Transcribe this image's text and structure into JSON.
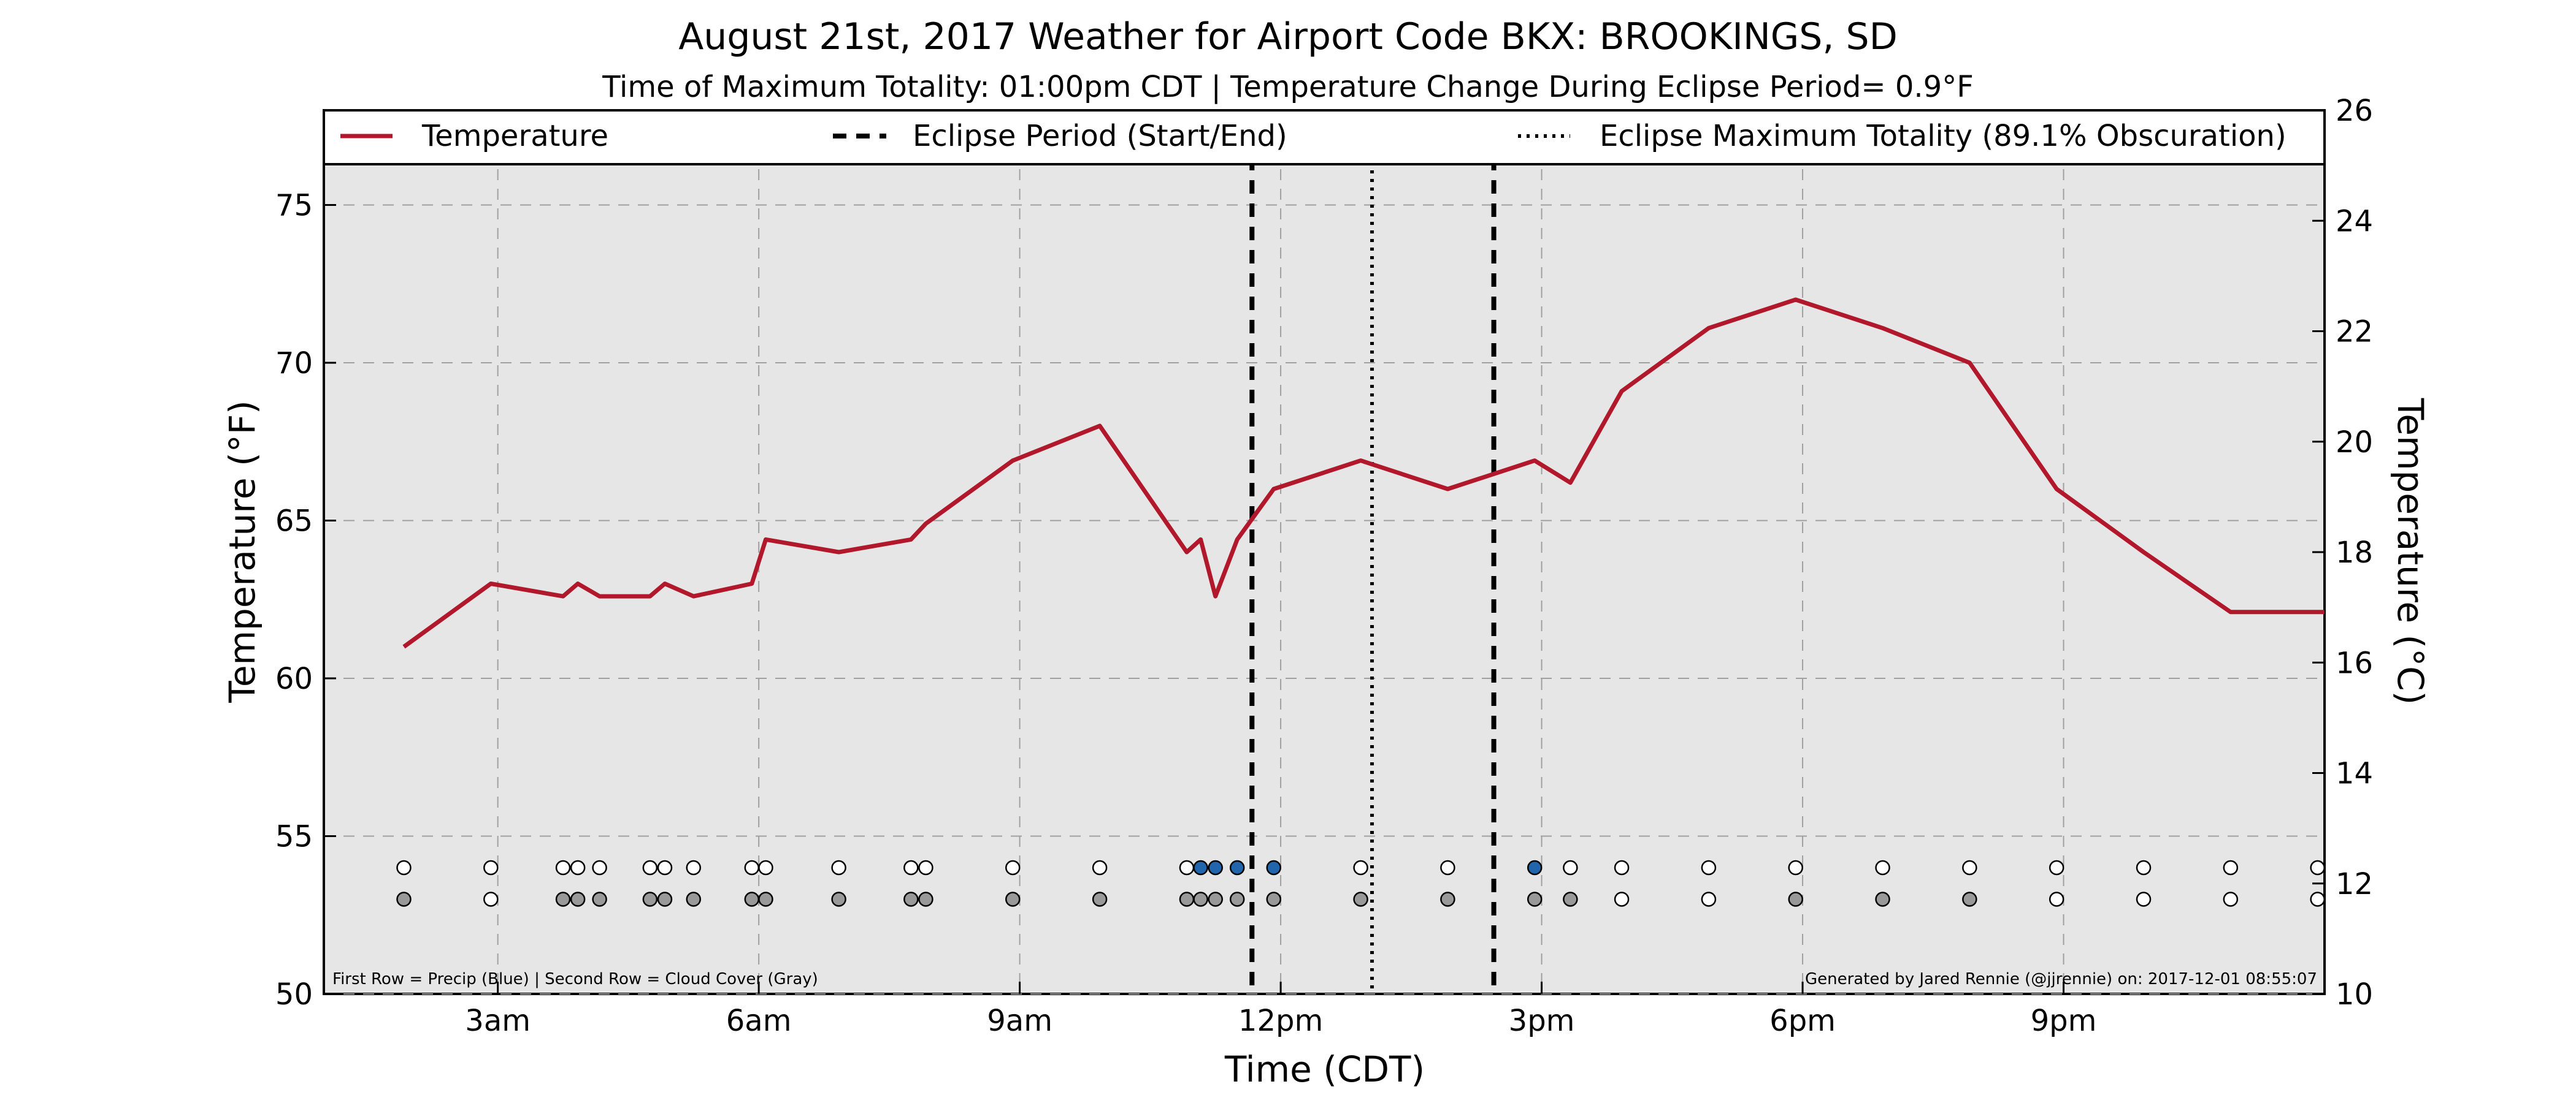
{
  "chart_data": {
    "type": "line",
    "title": "August 21st, 2017 Weather for Airport Code BKX: BROOKINGS, SD",
    "subtitle": "Time of Maximum Totality: 01:00pm CDT | Temperature Change During Eclipse Period= 0.9°F",
    "xlabel": "Time (CDT)",
    "ylabel_left": "Temperature (°F)",
    "ylabel_right": "Temperature (°C)",
    "xlim": [
      1.0,
      24.0
    ],
    "ylim_left": [
      50,
      78
    ],
    "ylim_right": [
      10,
      26
    ],
    "xticks": [
      {
        "x": 3,
        "label": "3am"
      },
      {
        "x": 6,
        "label": "6am"
      },
      {
        "x": 9,
        "label": "9am"
      },
      {
        "x": 12,
        "label": "12pm"
      },
      {
        "x": 15,
        "label": "3pm"
      },
      {
        "x": 18,
        "label": "6pm"
      },
      {
        "x": 21,
        "label": "9pm"
      }
    ],
    "yticks_left": [
      50,
      55,
      60,
      65,
      70,
      75
    ],
    "yticks_right": [
      10,
      12,
      14,
      16,
      18,
      20,
      22,
      24,
      26
    ],
    "grid": true,
    "legend": {
      "placement": "top",
      "entries": [
        {
          "label": "Temperature",
          "style": "line",
          "color": "#b2182b"
        },
        {
          "label": "Eclipse Period (Start/End)",
          "style": "dashed",
          "color": "#000000"
        },
        {
          "label": "Eclipse Maximum Totality (89.1% Obscuration)",
          "style": "dotted",
          "color": "#000000"
        }
      ]
    },
    "series": [
      {
        "name": "Temperature",
        "color": "#b2182b",
        "points": [
          [
            1.92,
            61.0
          ],
          [
            2.92,
            63.0
          ],
          [
            3.75,
            62.6
          ],
          [
            3.92,
            63.0
          ],
          [
            4.17,
            62.6
          ],
          [
            4.75,
            62.6
          ],
          [
            4.92,
            63.0
          ],
          [
            5.25,
            62.6
          ],
          [
            5.92,
            63.0
          ],
          [
            6.08,
            64.4
          ],
          [
            6.92,
            64.0
          ],
          [
            7.75,
            64.4
          ],
          [
            7.92,
            64.9
          ],
          [
            8.92,
            66.9
          ],
          [
            9.92,
            68.0
          ],
          [
            10.92,
            64.0
          ],
          [
            11.08,
            64.4
          ],
          [
            11.25,
            62.6
          ],
          [
            11.5,
            64.4
          ],
          [
            11.92,
            66.0
          ],
          [
            12.92,
            66.9
          ],
          [
            13.92,
            66.0
          ],
          [
            14.92,
            66.9
          ],
          [
            15.33,
            66.2
          ],
          [
            15.92,
            69.1
          ],
          [
            16.92,
            71.1
          ],
          [
            17.92,
            72.0
          ],
          [
            18.92,
            71.1
          ],
          [
            19.92,
            70.0
          ],
          [
            20.92,
            66.0
          ],
          [
            21.92,
            64.0
          ],
          [
            22.92,
            62.1
          ],
          [
            24.0,
            62.1
          ]
        ]
      }
    ],
    "eclipse_start": 11.67,
    "eclipse_max": 13.05,
    "eclipse_end": 14.45,
    "obs_row_y": 54.0,
    "cloud_row_y": 53.0,
    "obs_times": [
      1.92,
      2.92,
      3.75,
      3.92,
      4.17,
      4.75,
      4.92,
      5.25,
      5.92,
      6.08,
      6.92,
      7.75,
      7.92,
      8.92,
      9.92,
      10.92,
      11.08,
      11.25,
      11.5,
      11.92,
      12.92,
      13.92,
      14.92,
      15.33,
      15.92,
      16.92,
      17.92,
      18.92,
      19.92,
      20.92,
      21.92,
      22.92,
      23.92
    ],
    "precip": [
      false,
      false,
      false,
      false,
      false,
      false,
      false,
      false,
      false,
      false,
      false,
      false,
      false,
      false,
      false,
      false,
      true,
      true,
      true,
      true,
      false,
      false,
      true,
      false,
      false,
      false,
      false,
      false,
      false,
      false,
      false,
      false,
      false
    ],
    "cloud": [
      true,
      false,
      true,
      true,
      true,
      true,
      true,
      true,
      true,
      true,
      true,
      true,
      true,
      true,
      true,
      true,
      true,
      true,
      true,
      true,
      true,
      true,
      true,
      true,
      false,
      false,
      true,
      true,
      true,
      false,
      false,
      false,
      false
    ],
    "colors": {
      "precip": "#2166ac",
      "no_precip": "#ffffff",
      "cloud": "#999999",
      "no_cloud": "#ffffff",
      "plot_bg": "#e6e6e6",
      "grid": "#a0a0a0"
    },
    "annotations": {
      "left": "First Row = Precip (Blue) | Second Row = Cloud Cover (Gray)",
      "right": "Generated by Jared Rennie (@jjrennie) on: 2017-12-01 08:55:07"
    }
  }
}
